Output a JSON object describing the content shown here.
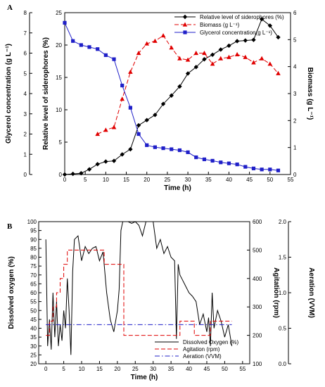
{
  "chart_data": [
    {
      "type": "line",
      "panel_label": "A",
      "xlabel": "Time (h)",
      "ylabel_left_outer": "Glycerol concentration (g L⁻¹)",
      "ylabel_left_inner": "Relative level of siderophores (%)",
      "ylabel_right": "Biomass (g L⁻¹)",
      "xlim": [
        0,
        55
      ],
      "xticks": [
        0,
        5,
        10,
        15,
        20,
        25,
        30,
        35,
        40,
        45,
        50,
        55
      ],
      "ylim_siderophores": [
        0,
        25
      ],
      "yticks_siderophores": [
        0,
        5,
        10,
        15,
        20,
        25
      ],
      "ylim_glycerol": [
        0,
        8
      ],
      "yticks_glycerol": [
        0,
        1,
        2,
        3,
        4,
        5,
        6,
        7,
        8
      ],
      "ylim_biomass": [
        0,
        6
      ],
      "yticks_biomass": [
        0,
        1,
        2,
        3,
        4,
        5,
        6
      ],
      "legend_position": "top-right",
      "series": [
        {
          "name": "Relative level of siderophores (%)",
          "axis": "siderophores",
          "color": "#000000",
          "marker": "diamond",
          "dash": "solid",
          "x": [
            0,
            2,
            4,
            6,
            8,
            10,
            12,
            14,
            16,
            18,
            20,
            22,
            24,
            26,
            28,
            30,
            32,
            34,
            36,
            38,
            40,
            42,
            44,
            46,
            48,
            50,
            52
          ],
          "y": [
            0,
            0.1,
            0.2,
            0.8,
            1.6,
            2.0,
            2.1,
            3.1,
            3.9,
            7.6,
            8.4,
            9.2,
            10.9,
            12.2,
            13.6,
            15.6,
            16.6,
            17.8,
            18.5,
            19.3,
            19.9,
            20.6,
            20.7,
            20.8,
            24.0,
            23.0,
            21.2
          ]
        },
        {
          "name": "Biomass (g L⁻¹)",
          "axis": "biomass",
          "color": "#e00000",
          "marker": "triangle",
          "dash": "dashed",
          "x": [
            8,
            10,
            12,
            14,
            16,
            18,
            20,
            22,
            24,
            26,
            28,
            30,
            32,
            34,
            36,
            38,
            40,
            42,
            44,
            46,
            48,
            50,
            52
          ],
          "y": [
            1.5,
            1.65,
            1.75,
            2.8,
            3.8,
            4.5,
            4.85,
            4.95,
            5.15,
            4.7,
            4.3,
            4.25,
            4.5,
            4.5,
            4.1,
            4.3,
            4.35,
            4.45,
            4.35,
            4.15,
            4.3,
            4.1,
            3.75
          ]
        },
        {
          "name": "Glycerol concentration(g L⁻¹)",
          "axis": "glycerol",
          "color": "#1f1fc8",
          "marker": "square",
          "dash": "solid",
          "x": [
            0,
            2,
            4,
            6,
            8,
            10,
            12,
            14,
            16,
            18,
            20,
            22,
            24,
            26,
            28,
            30,
            32,
            34,
            36,
            38,
            40,
            42,
            44,
            46,
            48,
            50,
            52
          ],
          "y": [
            7.5,
            6.6,
            6.4,
            6.3,
            6.2,
            5.9,
            5.7,
            4.4,
            3.3,
            2.0,
            1.45,
            1.35,
            1.3,
            1.25,
            1.2,
            1.1,
            0.85,
            0.75,
            0.68,
            0.6,
            0.55,
            0.5,
            0.38,
            0.3,
            0.25,
            0.25,
            0.2
          ]
        }
      ]
    },
    {
      "type": "line",
      "panel_label": "B",
      "xlabel": "Time (h)",
      "ylabel_left": "Dissolved oxygen (%)",
      "ylabel_mid": "Agitation (rpm)",
      "ylabel_right": "Aeration (VVM)",
      "xlim": [
        -2,
        57
      ],
      "xticks": [
        0,
        5,
        10,
        15,
        20,
        25,
        30,
        35,
        40,
        45,
        50,
        55
      ],
      "ylim_do": [
        20,
        100
      ],
      "yticks_do": [
        20,
        25,
        30,
        35,
        40,
        45,
        50,
        55,
        60,
        65,
        70,
        75,
        80,
        85,
        90,
        95,
        100
      ],
      "ylim_rpm": [
        100,
        600
      ],
      "yticks_rpm": [
        100,
        200,
        300,
        400,
        500,
        600
      ],
      "ylim_vvm": [
        0,
        2
      ],
      "yticks_vvm": [
        "0.0",
        "0.5",
        "1.0",
        "1.5",
        "2.0"
      ],
      "legend_position": "bottom-right",
      "series": [
        {
          "name": "Dissolved Oxygen (%)",
          "axis": "do",
          "color": "#000000",
          "dash": "solid",
          "x": [
            0,
            0.5,
            1,
            1.5,
            2,
            2.5,
            3,
            3.5,
            4,
            4.5,
            5,
            5.5,
            6,
            6.5,
            7,
            7.5,
            8,
            9,
            10,
            11,
            12,
            13,
            14,
            15,
            16,
            17,
            18,
            19,
            20,
            20.5,
            21,
            21.5,
            22,
            23,
            24,
            25,
            26,
            27,
            28,
            29,
            30,
            31,
            32,
            33,
            34,
            35,
            36,
            36.5,
            37,
            37.5,
            38,
            39,
            40,
            41,
            42,
            43,
            44,
            45,
            45.5,
            46,
            46.5,
            47,
            48,
            49,
            50,
            51,
            52
          ],
          "y": [
            90,
            30,
            45,
            28,
            60,
            35,
            55,
            30,
            42,
            33,
            50,
            40,
            68,
            50,
            25,
            72,
            90,
            92,
            78,
            86,
            82,
            85,
            86,
            78,
            83,
            60,
            45,
            38,
            50,
            62,
            95,
            100,
            100,
            100,
            99,
            100,
            98,
            92,
            100,
            100,
            100,
            85,
            90,
            82,
            86,
            80,
            78,
            34,
            76,
            70,
            68,
            64,
            60,
            58,
            55,
            42,
            48,
            38,
            46,
            30,
            60,
            40,
            50,
            44,
            35,
            42,
            30
          ]
        },
        {
          "name": "Agitation (rpm)",
          "axis": "rpm",
          "color": "#e00000",
          "dash": "dashed",
          "x": [
            0,
            1,
            1,
            2,
            2,
            3,
            3,
            4,
            4,
            5,
            5,
            6,
            6,
            16.3,
            16.3,
            21.8,
            21.8,
            37.5,
            37.5,
            41.5,
            41.5,
            46,
            46,
            52
          ],
          "y": [
            200,
            200,
            250,
            250,
            300,
            300,
            350,
            350,
            400,
            400,
            450,
            450,
            500,
            500,
            450,
            450,
            200,
            200,
            250,
            250,
            200,
            200,
            250,
            250
          ]
        },
        {
          "name": "Aeration (VVM)",
          "axis": "vvm",
          "color": "#1f1fc8",
          "dash": "dashdot",
          "x": [
            0,
            52
          ],
          "y": [
            0.55,
            0.55
          ]
        }
      ]
    }
  ]
}
